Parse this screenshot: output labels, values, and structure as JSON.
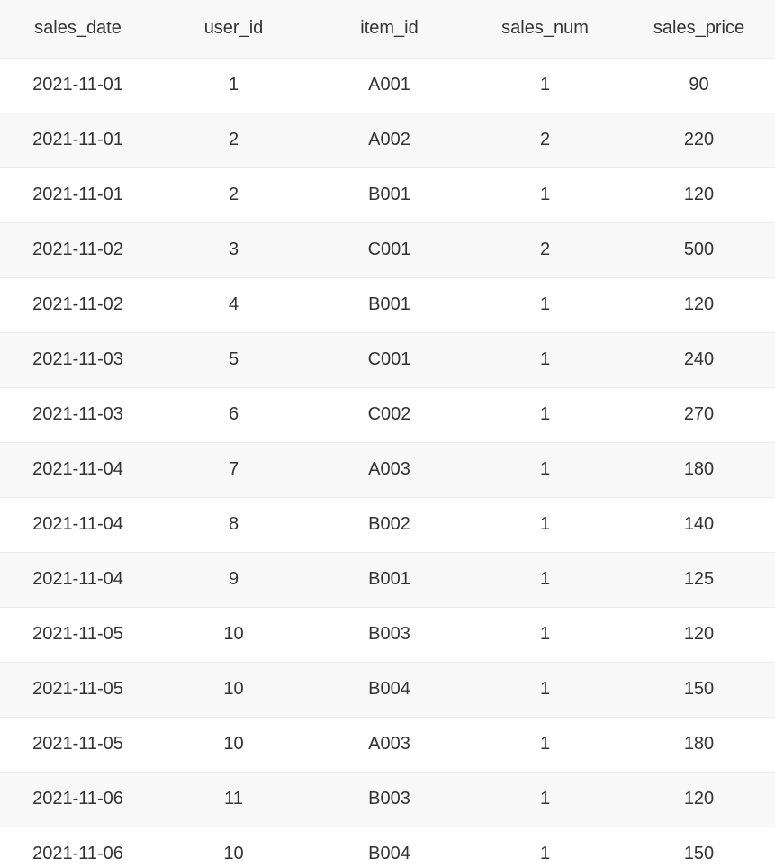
{
  "table": {
    "columns": [
      "sales_date",
      "user_id",
      "item_id",
      "sales_num",
      "sales_price"
    ],
    "rows": [
      [
        "2021-11-01",
        "1",
        "A001",
        "1",
        "90"
      ],
      [
        "2021-11-01",
        "2",
        "A002",
        "2",
        "220"
      ],
      [
        "2021-11-01",
        "2",
        "B001",
        "1",
        "120"
      ],
      [
        "2021-11-02",
        "3",
        "C001",
        "2",
        "500"
      ],
      [
        "2021-11-02",
        "4",
        "B001",
        "1",
        "120"
      ],
      [
        "2021-11-03",
        "5",
        "C001",
        "1",
        "240"
      ],
      [
        "2021-11-03",
        "6",
        "C002",
        "1",
        "270"
      ],
      [
        "2021-11-04",
        "7",
        "A003",
        "1",
        "180"
      ],
      [
        "2021-11-04",
        "8",
        "B002",
        "1",
        "140"
      ],
      [
        "2021-11-04",
        "9",
        "B001",
        "1",
        "125"
      ],
      [
        "2021-11-05",
        "10",
        "B003",
        "1",
        "120"
      ],
      [
        "2021-11-05",
        "10",
        "B004",
        "1",
        "150"
      ],
      [
        "2021-11-05",
        "10",
        "A003",
        "1",
        "180"
      ],
      [
        "2021-11-06",
        "11",
        "B003",
        "1",
        "120"
      ],
      [
        "2021-11-06",
        "10",
        "B004",
        "1",
        "150"
      ]
    ]
  }
}
